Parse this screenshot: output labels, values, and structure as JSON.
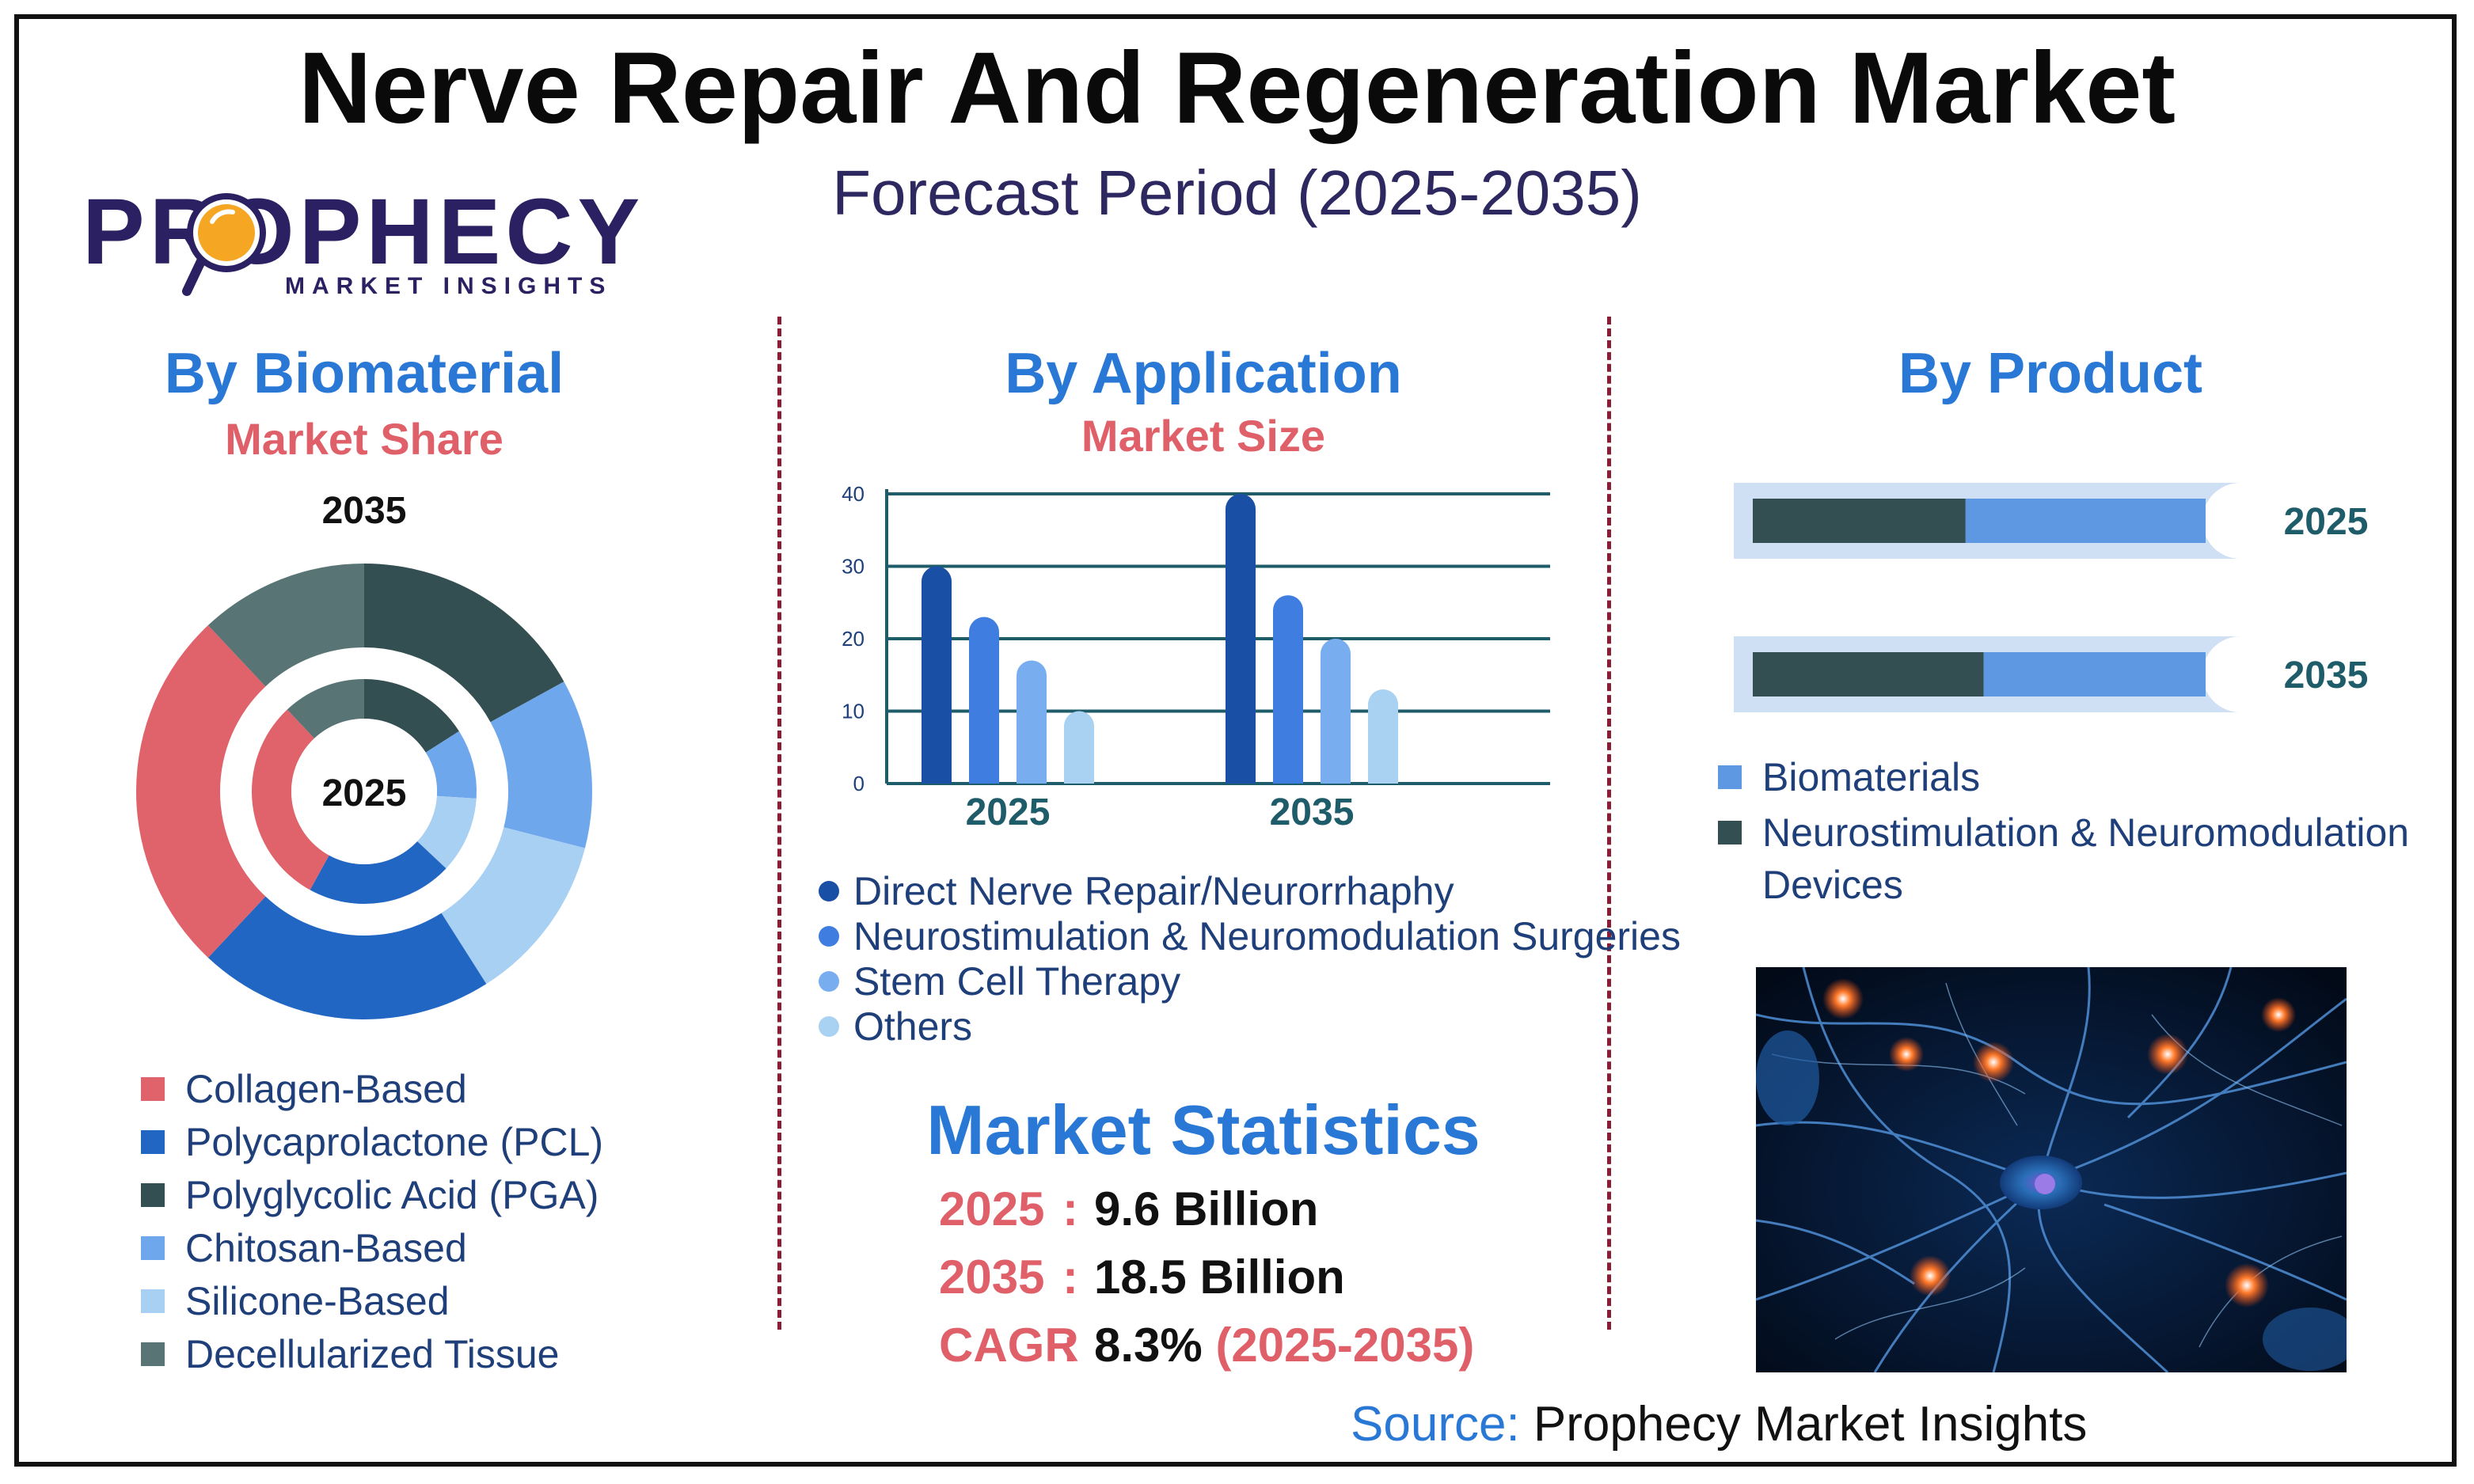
{
  "header": {
    "title": "Nerve Repair And Regeneration Market",
    "subtitle": "Forecast Period (2025-2035)"
  },
  "logo": {
    "main": "PROPHECY",
    "sub": "MARKET INSIGHTS"
  },
  "colors": {
    "collagen": "#e0626a",
    "pcl": "#2266c4",
    "pga": "#344f52",
    "chitosan": "#6fa7ec",
    "silicone": "#a8d0f2",
    "decell": "#587475",
    "app1": "#1a4fa6",
    "app2": "#3f7ee0",
    "app3": "#78aef0",
    "app4": "#a9d2f2",
    "bar_dark": "#344f52",
    "bar_light": "#5e98e2",
    "track": "#cfe0f4"
  },
  "biomaterial": {
    "title": "By Biomaterial",
    "subtitle": "Market Share",
    "outer_year": "2035",
    "inner_year": "2025",
    "legend": [
      {
        "label": "Collagen-Based",
        "color": "#e0626a"
      },
      {
        "label": "Polycaprolactone (PCL)",
        "color": "#2266c4"
      },
      {
        "label": "Polyglycolic Acid (PGA)",
        "color": "#344f52"
      },
      {
        "label": "Chitosan-Based",
        "color": "#6fa7ec"
      },
      {
        "label": "Silicone-Based",
        "color": "#a8d0f2"
      },
      {
        "label": "Decellularized Tissue",
        "color": "#587475"
      }
    ]
  },
  "application": {
    "title": "By Application",
    "subtitle": "Market Size",
    "legend": [
      {
        "label": "Direct Nerve Repair/Neurorrhaphy",
        "color": "#1a4fa6"
      },
      {
        "label": "Neurostimulation & Neuromodulation Surgeries",
        "color": "#3f7ee0"
      },
      {
        "label": "Stem Cell Therapy",
        "color": "#78aef0"
      },
      {
        "label": "Others",
        "color": "#a9d2f2"
      }
    ]
  },
  "product": {
    "title": "By Product",
    "legend": [
      {
        "label": "Biomaterials",
        "color": "#5e98e2"
      },
      {
        "label": "Neurostimulation & Neuromodulation",
        "label2": "Devices",
        "color": "#344f52"
      }
    ]
  },
  "stats": {
    "title": "Market Statistics",
    "rows": [
      {
        "key": "2025",
        "value": "9.6 Billion",
        "extra": ""
      },
      {
        "key": "2035",
        "value": "18.5 Billion",
        "extra": ""
      },
      {
        "key": "CAGR",
        "value": "8.3%",
        "extra": "(2025-2035)"
      }
    ]
  },
  "source": {
    "label": "Source:",
    "value": "Prophecy Market Insights"
  },
  "image_alt": "neuron-network-photo",
  "chart_data": [
    {
      "type": "pie",
      "title": "By Biomaterial",
      "subtitle": "Market Share",
      "series": [
        {
          "name": "2035",
          "categories": [
            "Polyglycolic Acid (PGA)",
            "Chitosan-Based",
            "Silicone-Based",
            "Polycaprolactone (PCL)",
            "Collagen-Based",
            "Decellularized Tissue"
          ],
          "values": [
            17,
            12,
            12,
            21,
            26,
            12
          ]
        },
        {
          "name": "2025",
          "categories": [
            "Polyglycolic Acid (PGA)",
            "Chitosan-Based",
            "Silicone-Based",
            "Polycaprolactone (PCL)",
            "Collagen-Based",
            "Decellularized Tissue"
          ],
          "values": [
            16,
            10,
            11,
            21,
            30,
            12
          ]
        }
      ]
    },
    {
      "type": "bar",
      "title": "By Application",
      "subtitle": "Market Size",
      "categories": [
        "2025",
        "2035"
      ],
      "ylim": [
        0,
        40
      ],
      "yticks": [
        0,
        10,
        20,
        30,
        40
      ],
      "grid": true,
      "series": [
        {
          "name": "Direct Nerve Repair/Neurorrhaphy",
          "values": [
            30,
            40
          ]
        },
        {
          "name": "Neurostimulation & Neuromodulation Surgeries",
          "values": [
            23,
            26
          ]
        },
        {
          "name": "Stem Cell Therapy",
          "values": [
            17,
            20
          ]
        },
        {
          "name": "Others",
          "values": [
            10,
            13
          ]
        }
      ]
    },
    {
      "type": "bar",
      "title": "By Product",
      "orientation": "horizontal",
      "stacked": true,
      "categories": [
        "2025",
        "2035"
      ],
      "series": [
        {
          "name": "Neurostimulation & Neuromodulation Devices",
          "values": [
            47,
            51
          ]
        },
        {
          "name": "Biomaterials",
          "values": [
            53,
            49
          ]
        }
      ]
    }
  ]
}
